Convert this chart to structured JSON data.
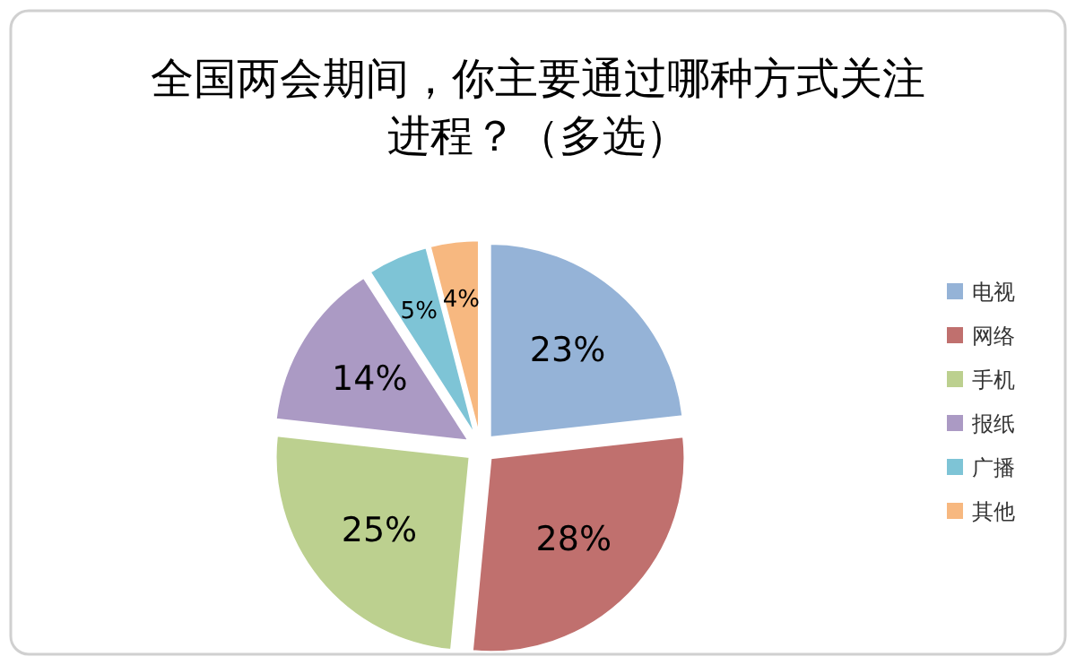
{
  "chart_data": {
    "type": "pie",
    "title": "全国两会期间，你主要通过哪种方式关注进程？（多选）",
    "categories": [
      "电视",
      "网络",
      "手机",
      "报纸",
      "广播",
      "其他"
    ],
    "values": [
      23,
      28,
      25,
      14,
      5,
      4
    ],
    "value_labels": [
      "23%",
      "28%",
      "25%",
      "14%",
      "5%",
      "4%"
    ],
    "colors": [
      "#95b3d7",
      "#c0706e",
      "#bcd08f",
      "#ab9ac4",
      "#7ec4d6",
      "#f7b880"
    ],
    "legend": "right"
  }
}
